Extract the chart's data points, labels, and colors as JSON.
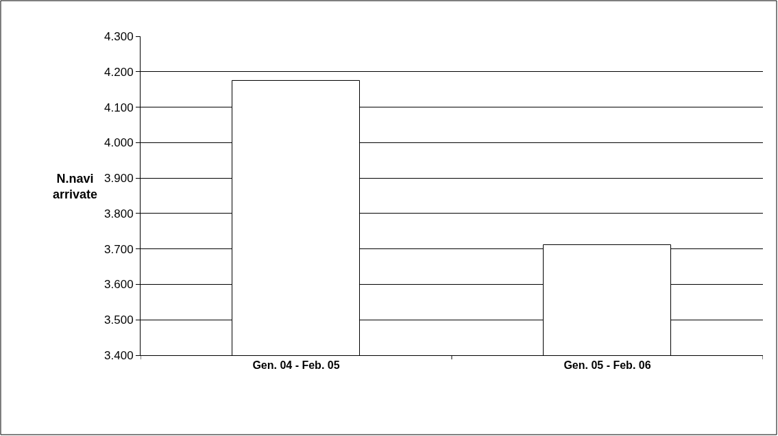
{
  "chart_data": {
    "type": "bar",
    "ylabel": "N.navi\narrivate",
    "categories": [
      "Gen. 04 - Feb. 05",
      "Gen. 05 - Feb. 06"
    ],
    "values": [
      4175,
      3710
    ],
    "color": "#ffffff",
    "ylim": [
      3400,
      4300
    ],
    "yticks": [
      {
        "value": 3400,
        "label": "3.400"
      },
      {
        "value": 3500,
        "label": "3.500"
      },
      {
        "value": 3600,
        "label": "3.600"
      },
      {
        "value": 3700,
        "label": "3.700"
      },
      {
        "value": 3800,
        "label": "3.800"
      },
      {
        "value": 3900,
        "label": "3.900"
      },
      {
        "value": 4000,
        "label": "4.000"
      },
      {
        "value": 4100,
        "label": "4.100"
      },
      {
        "value": 4200,
        "label": "4.200"
      },
      {
        "value": 4300,
        "label": "4.300"
      }
    ],
    "grid": "y",
    "legend": false
  }
}
